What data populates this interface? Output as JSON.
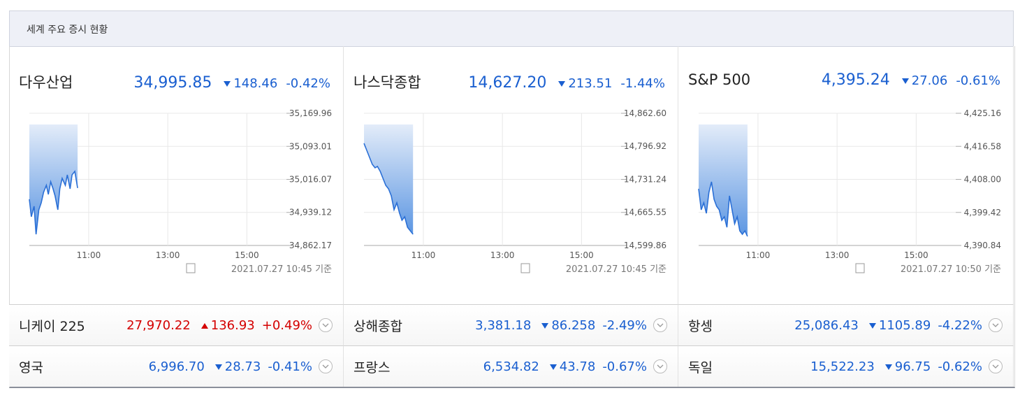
{
  "header": {
    "title": "세계 주요 증시 현황"
  },
  "panels": [
    {
      "name": "다우산업",
      "price": "34,995.85",
      "change": "148.46",
      "rate": "-0.42%",
      "direction": "down",
      "chart": {
        "type": "line",
        "xlim": [
          9.5,
          16
        ],
        "ylim": [
          34862.17,
          35169.96
        ],
        "xticks": [
          {
            "value": 11,
            "label": "11:00"
          },
          {
            "value": 13,
            "label": "13:00"
          },
          {
            "value": 15,
            "label": "15:00"
          }
        ],
        "yticks": [
          {
            "value": 34862.17,
            "label": "34,862.17"
          },
          {
            "value": 34939.12,
            "label": "34,939.12"
          },
          {
            "value": 35016.07,
            "label": "35,016.07"
          },
          {
            "value": 35093.01,
            "label": "35,093.01"
          },
          {
            "value": 35169.96,
            "label": "35,169.96"
          }
        ],
        "x": [
          9.5,
          9.55,
          9.62,
          9.67,
          9.74,
          9.8,
          9.86,
          9.93,
          9.98,
          10.04,
          10.1,
          10.15,
          10.22,
          10.27,
          10.33,
          10.41,
          10.46,
          10.53,
          10.58,
          10.65,
          10.72
        ],
        "values": [
          34969.7,
          34929.0,
          34953.4,
          34888.2,
          34945.2,
          34961.5,
          34986.0,
          35002.2,
          34981.1,
          35010.4,
          34994.1,
          34977.8,
          34945.2,
          34994.1,
          35018.5,
          35002.2,
          35026.7,
          34994.1,
          35026.7,
          35034.8,
          34995.9
        ],
        "timestamp": "2021.07.27 10:45 기준"
      }
    },
    {
      "name": "나스닥종합",
      "price": "14,627.20",
      "change": "213.51",
      "rate": "-1.44%",
      "direction": "down",
      "chart": {
        "type": "line",
        "xlim": [
          9.5,
          16
        ],
        "ylim": [
          14599.86,
          14862.6
        ],
        "xticks": [
          {
            "value": 11,
            "label": "11:00"
          },
          {
            "value": 13,
            "label": "13:00"
          },
          {
            "value": 15,
            "label": "15:00"
          }
        ],
        "yticks": [
          {
            "value": 14599.86,
            "label": "14,599.86"
          },
          {
            "value": 14665.55,
            "label": "14,665.55"
          },
          {
            "value": 14731.24,
            "label": "14,731.24"
          },
          {
            "value": 14796.92,
            "label": "14,796.92"
          },
          {
            "value": 14862.6,
            "label": "14,862.60"
          }
        ],
        "x": [
          9.5,
          9.57,
          9.64,
          9.71,
          9.78,
          9.84,
          9.91,
          9.98,
          10.05,
          10.12,
          10.19,
          10.26,
          10.33,
          10.4,
          10.46,
          10.53,
          10.6,
          10.67,
          10.74
        ],
        "values": [
          14802.9,
          14788.9,
          14775.0,
          14761.1,
          14754.2,
          14757.0,
          14747.2,
          14733.3,
          14719.4,
          14712.5,
          14698.6,
          14670.8,
          14684.6,
          14663.8,
          14649.9,
          14656.8,
          14636.0,
          14629.1,
          14622.1
        ],
        "timestamp": "2021.07.27 10:45 기준"
      }
    },
    {
      "name": "S&P 500",
      "price": "4,395.24",
      "change": "27.06",
      "rate": "-0.61%",
      "direction": "down",
      "chart": {
        "type": "line",
        "xlim": [
          9.5,
          16
        ],
        "ylim": [
          4390.84,
          4425.16
        ],
        "xticks": [
          {
            "value": 11,
            "label": "11:00"
          },
          {
            "value": 13,
            "label": "13:00"
          },
          {
            "value": 15,
            "label": "15:00"
          }
        ],
        "yticks": [
          {
            "value": 4390.84,
            "label": "4,390.84"
          },
          {
            "value": 4399.42,
            "label": "4,399.42"
          },
          {
            "value": 4408,
            "label": "4,408.00"
          },
          {
            "value": 4416.58,
            "label": "4,416.58"
          },
          {
            "value": 4425.16,
            "label": "4,425.16"
          }
        ],
        "x": [
          9.5,
          9.565,
          9.63,
          9.695,
          9.76,
          9.825,
          9.89,
          9.955,
          10.02,
          10.085,
          10.15,
          10.215,
          10.28,
          10.345,
          10.41,
          10.475,
          10.54,
          10.605,
          10.67,
          10.735
        ],
        "values": [
          4405.55,
          4400.1,
          4401.92,
          4399.19,
          4404.64,
          4407.37,
          4402.83,
          4401.01,
          4400.1,
          4397.38,
          4398.29,
          4395.56,
          4403.73,
          4400.1,
          4396.47,
          4398.29,
          4394.65,
          4393.75,
          4394.65,
          4393.2
        ],
        "timestamp": "2021.07.27 10:50 기준"
      }
    }
  ],
  "rows": [
    [
      {
        "name": "니케이 225",
        "price": "27,970.22",
        "change": "136.93",
        "rate": "+0.49%",
        "direction": "up"
      },
      {
        "name": "상해종합",
        "price": "3,381.18",
        "change": "86.258",
        "rate": "-2.49%",
        "direction": "down"
      },
      {
        "name": "항셍",
        "price": "25,086.43",
        "change": "1105.89",
        "rate": "-4.22%",
        "direction": "down"
      }
    ],
    [
      {
        "name": "영국",
        "price": "6,996.70",
        "change": "28.73",
        "rate": "-0.41%",
        "direction": "down"
      },
      {
        "name": "프랑스",
        "price": "6,534.82",
        "change": "43.78",
        "rate": "-0.67%",
        "direction": "down"
      },
      {
        "name": "독일",
        "price": "15,522.23",
        "change": "96.75",
        "rate": "-0.62%",
        "direction": "down"
      }
    ]
  ]
}
